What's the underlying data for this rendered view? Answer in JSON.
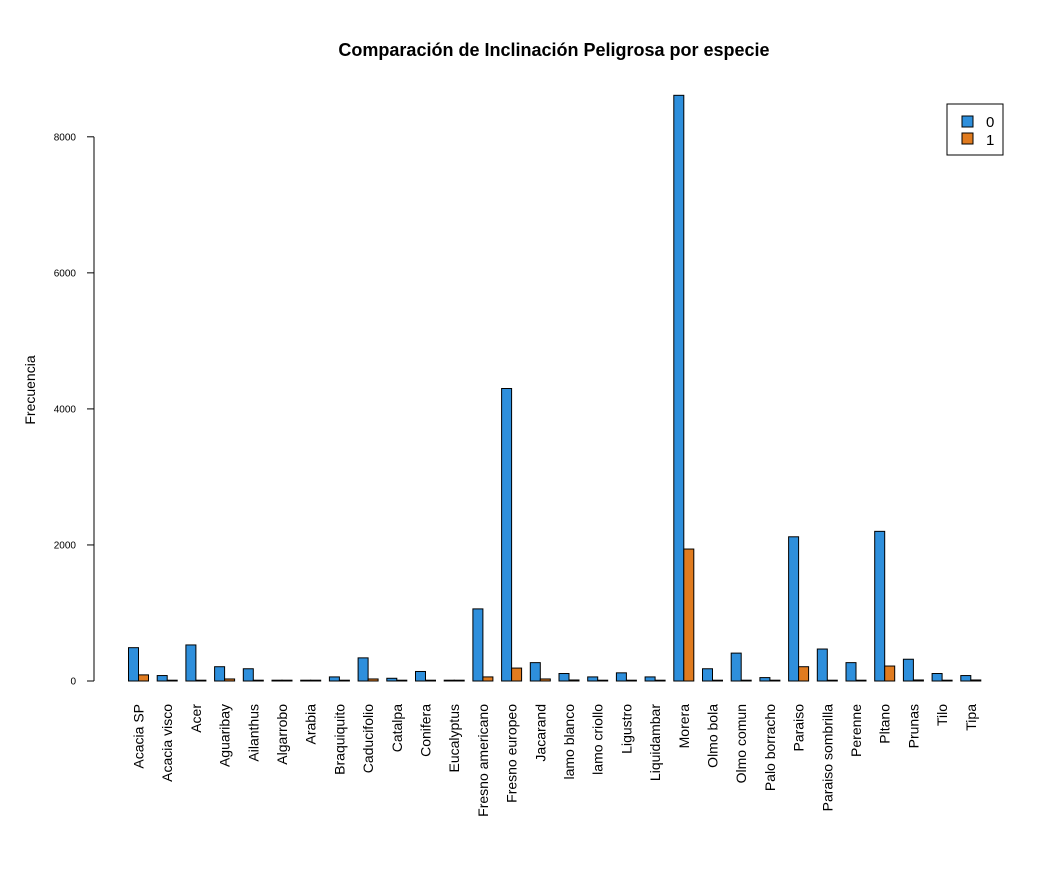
{
  "chart_data": {
    "type": "bar",
    "title": "Comparación de Inclinación Peligrosa por especie",
    "xlabel": "",
    "ylabel": "Frecuencia",
    "ylim": [
      0,
      8600
    ],
    "yticks": [
      0,
      2000,
      4000,
      6000,
      8000
    ],
    "grid": false,
    "legend_position": "top-right",
    "categories": [
      "Acacia SP",
      "Acacia visco",
      "Acer",
      "Aguaribay",
      "Ailanthus",
      "Algarrobo",
      "Arabia",
      "Braquiquito",
      "Caducifolio",
      "Catalpa",
      "Conifera",
      "Eucalyptus",
      "Fresno americano",
      "Fresno europeo",
      "Jacarand",
      "lamo blanco",
      "lamo criollo",
      "Ligustro",
      "Liquidambar",
      "Morera",
      "Olmo bola",
      "Olmo comun",
      "Palo borracho",
      "Paraiso",
      "Paraiso sombrilla",
      "Perenne",
      "Pltano",
      "Prunas",
      "Tilo",
      "Tipa"
    ],
    "series": [
      {
        "name": "0",
        "color": "#2e8fdc",
        "values": [
          490,
          80,
          530,
          210,
          180,
          10,
          10,
          60,
          340,
          40,
          140,
          10,
          1060,
          4300,
          270,
          110,
          60,
          120,
          60,
          8610,
          180,
          410,
          50,
          2120,
          470,
          270,
          2200,
          320,
          110,
          80
        ]
      },
      {
        "name": "1",
        "color": "#e07b1f",
        "values": [
          90,
          10,
          10,
          30,
          10,
          5,
          5,
          5,
          30,
          10,
          5,
          5,
          60,
          190,
          30,
          15,
          5,
          5,
          5,
          1940,
          10,
          10,
          5,
          210,
          10,
          10,
          220,
          15,
          5,
          15
        ]
      }
    ]
  }
}
